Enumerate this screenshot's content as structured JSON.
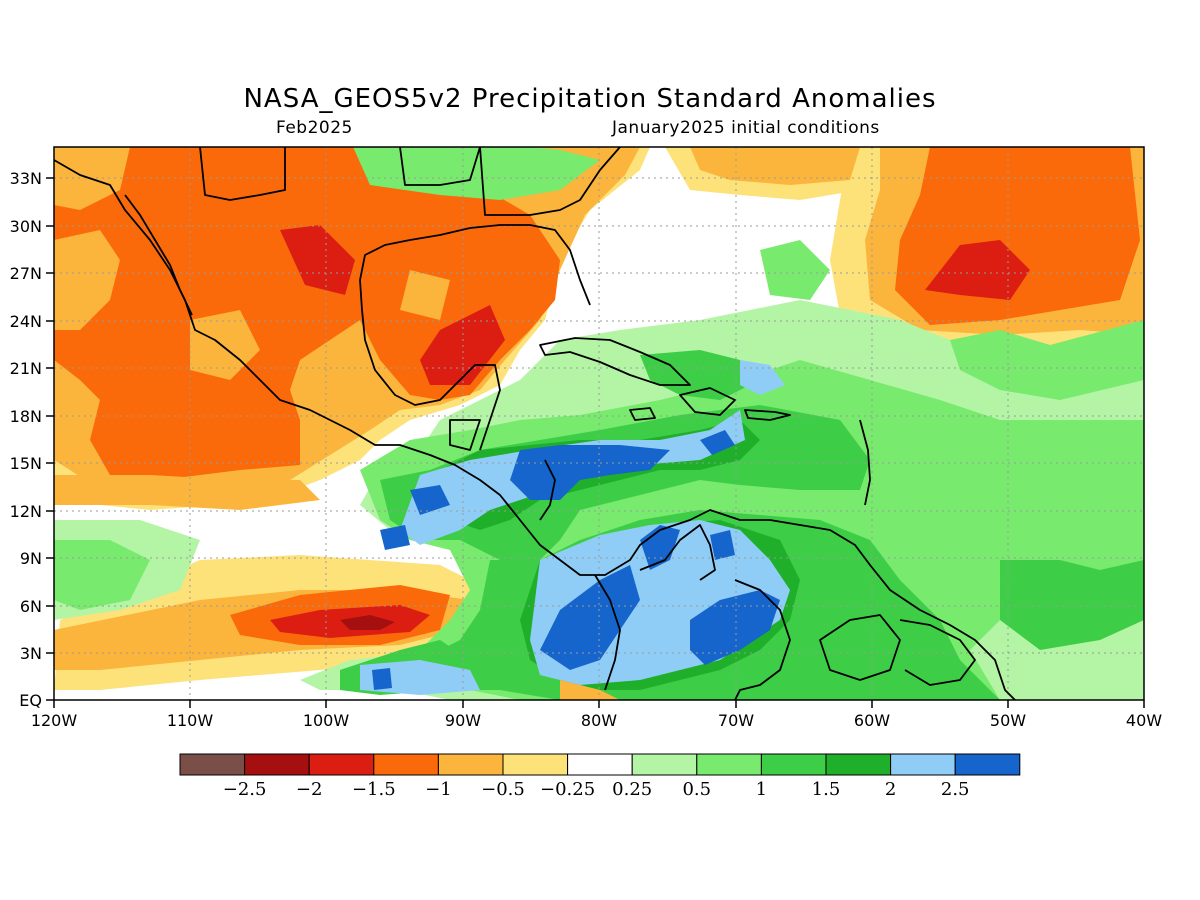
{
  "title": "NASA_GEOS5v2 Precipitation Standard Anomalies",
  "subtitle_left": "Feb2025",
  "subtitle_right": "January2025 initial conditions",
  "map": {
    "lon_range": [
      -120,
      -40
    ],
    "lat_range": [
      0,
      35
    ],
    "grid": "dotted",
    "lat_ticks": [
      "EQ",
      "3N",
      "6N",
      "9N",
      "12N",
      "15N",
      "18N",
      "21N",
      "24N",
      "27N",
      "30N",
      "33N"
    ],
    "lon_ticks": [
      "120W",
      "110W",
      "100W",
      "90W",
      "80W",
      "70W",
      "60W",
      "50W",
      "40W"
    ]
  },
  "legend": {
    "colors": [
      "#7a4f47",
      "#a50f0f",
      "#dc1e12",
      "#fa6a0a",
      "#fbb43c",
      "#fde27a",
      "#ffffff",
      "#b3f5a5",
      "#78ea6e",
      "#3ecd46",
      "#1faf2b",
      "#90cdf6",
      "#1565cc"
    ],
    "labels": [
      "−2.5",
      "−2",
      "−1.5",
      "−1",
      "−0.5",
      "−0.25",
      "0.25",
      "0.5",
      "1",
      "1.5",
      "2",
      "2.5"
    ]
  },
  "palette": {
    "strong_dry": "#a50f0f",
    "dry2": "#dc1e12",
    "dry": "#fa6a0a",
    "mod_dry": "#fbb43c",
    "weak_dry": "#fde27a",
    "neutral": "#ffffff",
    "weak_wet": "#b3f5a5",
    "mod_wet": "#78ea6e",
    "wet": "#3ecd46",
    "wet2": "#1faf2b",
    "very_wet": "#90cdf6",
    "extreme_wet": "#1565cc"
  }
}
